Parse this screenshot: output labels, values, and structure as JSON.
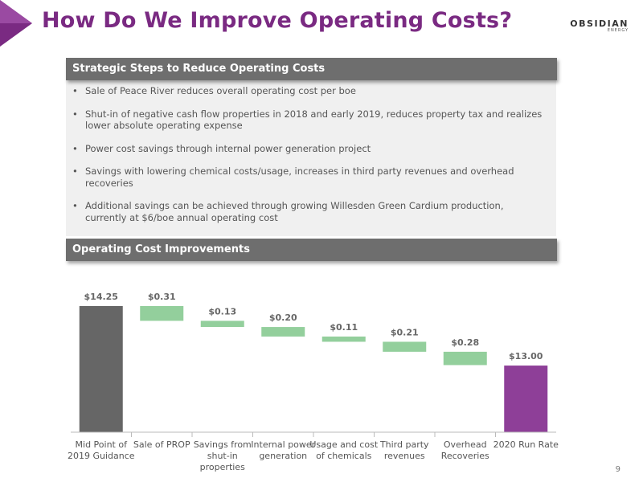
{
  "header": {
    "title": "How Do We Improve Operating Costs?",
    "logo_main": "OBSIDIAN",
    "logo_sub": "ENERGY",
    "accent_color": "#7a2a82"
  },
  "strategy": {
    "heading": "Strategic Steps to Reduce Operating Costs",
    "bullets": [
      "Sale of Peace River reduces overall operating cost per boe",
      "Shut-in of negative cash flow properties in 2018 and early 2019, reduces property tax and realizes lower absolute operating expense",
      "Power cost savings through internal power generation project",
      "Savings with lowering chemical costs/usage, increases in third party revenues and overhead recoveries",
      "Additional savings can be achieved through growing Willesden Green Cardium production, currently at $6/boe annual operating cost"
    ]
  },
  "chart_section": {
    "heading": "Operating Cost Improvements"
  },
  "chart_data": {
    "type": "bar",
    "subtype": "waterfall",
    "categories": [
      "Mid Point of 2019 Guidance",
      "Sale of PROP",
      "Savings from shut-in properties",
      "Internal power generation",
      "Usage and cost of chemicals",
      "Third party revenues",
      "Overhead Recoveries",
      "2020 Run Rate"
    ],
    "values": [
      14.25,
      -0.31,
      -0.13,
      -0.2,
      -0.11,
      -0.21,
      -0.28,
      13.0
    ],
    "data_labels": [
      "$14.25",
      "$0.31",
      "$0.13",
      "$0.20",
      "$0.11",
      "$0.21",
      "$0.28",
      "$13.00"
    ],
    "bar_kinds": [
      "total",
      "decrease",
      "decrease",
      "decrease",
      "decrease",
      "decrease",
      "decrease",
      "total"
    ],
    "ylim": [
      11.6,
      14.25
    ],
    "grid": false,
    "legend": false,
    "colors": {
      "start": "#666666",
      "decrease": "#93cf9c",
      "end": "#8e3f98"
    }
  },
  "footer": {
    "page_number": "9"
  }
}
